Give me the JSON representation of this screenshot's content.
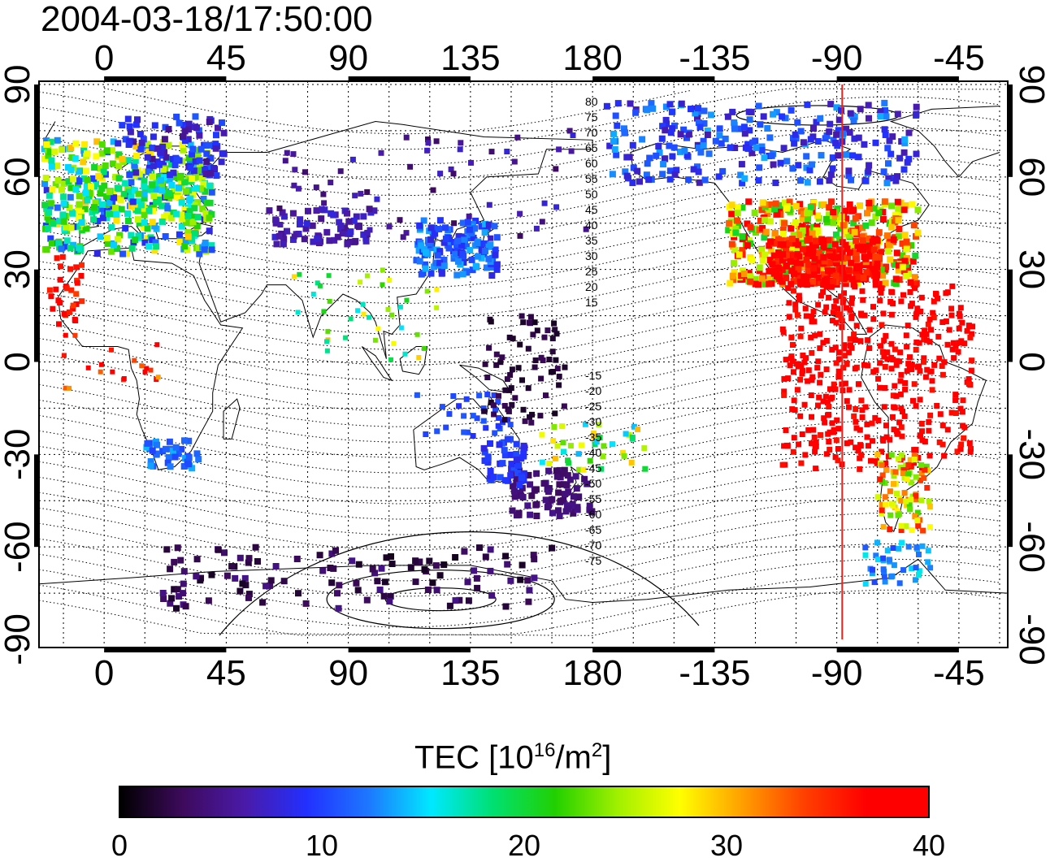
{
  "title": "2004-03-18/17:50:00",
  "map": {
    "top_lon_labels": [
      "0",
      "45",
      "90",
      "135",
      "180",
      "-135",
      "-90",
      "-45"
    ],
    "bottom_lon_labels": [
      "0",
      "45",
      "90",
      "135",
      "180",
      "-135",
      "-90",
      "-45"
    ],
    "left_lat_labels": [
      "90",
      "60",
      "30",
      "0",
      "-30",
      "-60",
      "-90"
    ],
    "right_lat_labels": [
      "90",
      "60",
      "30",
      "0",
      "-30",
      "-60",
      "-90"
    ],
    "contour_labels_north": [
      "80",
      "75",
      "70",
      "65",
      "60",
      "55",
      "50",
      "45",
      "40",
      "35",
      "30",
      "25",
      "20",
      "15"
    ],
    "contour_labels_south": [
      "-15",
      "-20",
      "-25",
      "-30",
      "-35",
      "-40",
      "-45",
      "-50",
      "-55",
      "-60",
      "-65",
      "-70",
      "-75"
    ],
    "meridian_marker_lon": -88,
    "meridian_marker_color": "#e8221c"
  },
  "colorbar": {
    "label_main": "TEC  [10",
    "label_sup1": "16",
    "label_mid": "/m",
    "label_sup2": "2",
    "label_end": "]",
    "ticks": [
      "0",
      "10",
      "20",
      "30",
      "40"
    ],
    "min": 0,
    "max": 40,
    "colors": [
      "#000000",
      "#3d0a5c",
      "#4a1aa8",
      "#2230ff",
      "#1d78ff",
      "#00e8ff",
      "#00e070",
      "#22d000",
      "#a0f000",
      "#ffff00",
      "#ffa000",
      "#ff4000",
      "#ff0000",
      "#ff0000"
    ]
  }
}
